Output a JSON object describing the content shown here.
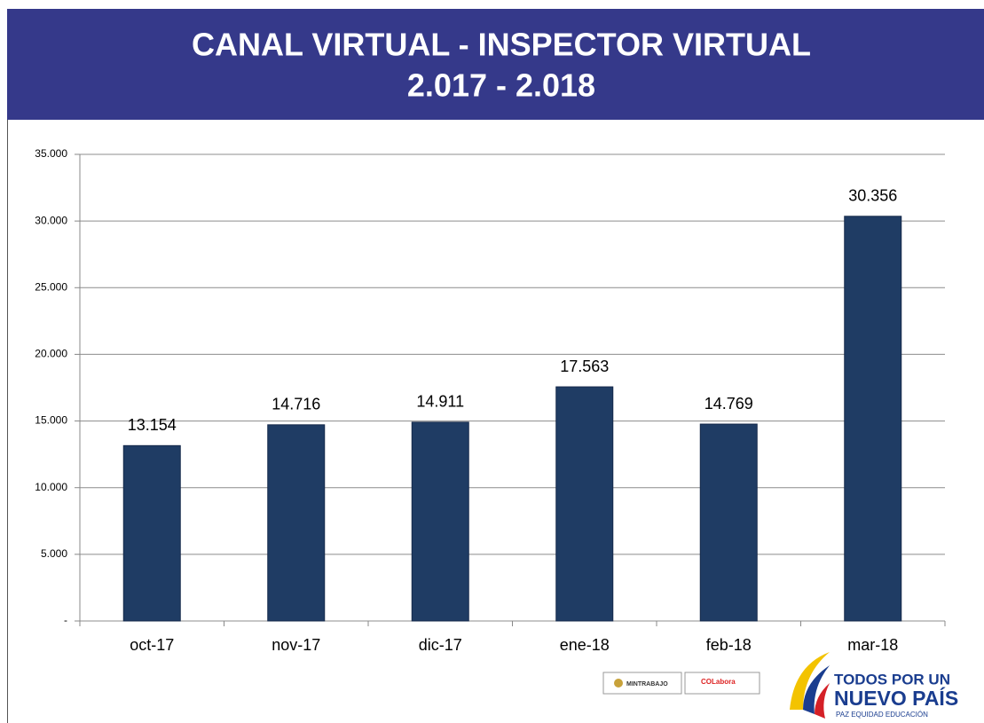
{
  "chart_data": {
    "type": "bar",
    "title": "CANAL VIRTUAL - INSPECTOR VIRTUAL",
    "subtitle": "2.017 - 2.018",
    "categories": [
      "oct-17",
      "nov-17",
      "dic-17",
      "ene-18",
      "feb-18",
      "mar-18"
    ],
    "values": [
      13154,
      14716,
      14911,
      17563,
      14769,
      30356
    ],
    "value_labels": [
      "13.154",
      "14.716",
      "14.911",
      "17.563",
      "14.769",
      "30.356"
    ],
    "color": "#1f3c64",
    "ylim": [
      0,
      35000
    ],
    "yticks": [
      {
        "value": 0,
        "label": "-"
      },
      {
        "value": 5000,
        "label": "5.000"
      },
      {
        "value": 10000,
        "label": "10.000"
      },
      {
        "value": 15000,
        "label": "15.000"
      },
      {
        "value": 20000,
        "label": "20.000"
      },
      {
        "value": 25000,
        "label": "25.000"
      },
      {
        "value": 30000,
        "label": "30.000"
      },
      {
        "value": 35000,
        "label": "35.000"
      }
    ],
    "grid": true
  },
  "logos": {
    "ministry": "MINTRABAJO",
    "colabora": "COLabora",
    "slogan_top": "TODOS POR UN",
    "slogan_main": "NUEVO PAÍS",
    "slogan_sub": "PAZ  EQUIDAD  EDUCACIÓN"
  }
}
